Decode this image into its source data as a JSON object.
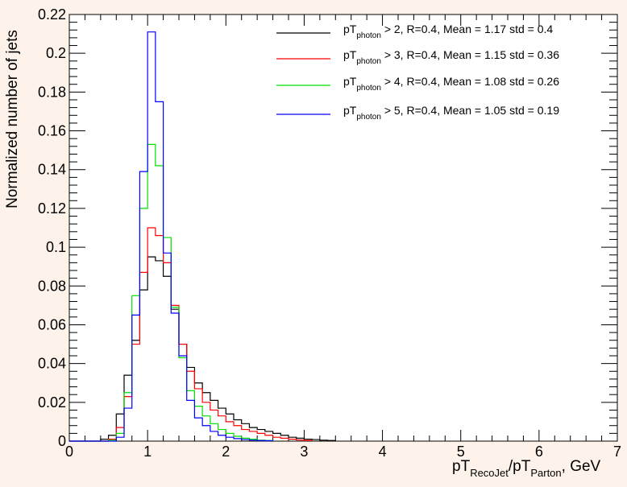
{
  "chart_data": {
    "type": "histogram",
    "xlim": [
      0,
      7
    ],
    "ylim": [
      0,
      0.22
    ],
    "bin_width": 0.1,
    "bin_start": 0.0,
    "x_ticks": [
      "0",
      "1",
      "2",
      "3",
      "4",
      "5",
      "6",
      "7"
    ],
    "y_ticks": [
      "0",
      "0.02",
      "0.04",
      "0.06",
      "0.08",
      "0.1",
      "0.12",
      "0.14",
      "0.16",
      "0.18",
      "0.2",
      "0.22"
    ],
    "ylabel": "Normalized number of jets",
    "xlabel": {
      "parts": [
        "pT",
        "RecoJet",
        "/pT",
        "Parton",
        ", GeV"
      ]
    },
    "grid": false,
    "legend_position": "top-right",
    "series": [
      {
        "color": "#000000",
        "label": {
          "main": "pT",
          "sub": "photon",
          "rest": " > 2, R=0.4, Mean = 1.17 std = 0.4"
        },
        "values": [
          0,
          0,
          0,
          0,
          0.001,
          0.003,
          0.014,
          0.034,
          0.052,
          0.078,
          0.095,
          0.093,
          0.085,
          0.068,
          0.05,
          0.038,
          0.03,
          0.025,
          0.021,
          0.017,
          0.014,
          0.011,
          0.009,
          0.007,
          0.006,
          0.005,
          0.004,
          0.003,
          0.002,
          0.0015,
          0.001,
          0.0008,
          0.0005,
          0.0003
        ]
      },
      {
        "color": "#ff0000",
        "label": {
          "main": "pT",
          "sub": "photon",
          "rest": " > 3, R=0.4, Mean = 1.15 std = 0.36"
        },
        "values": [
          0,
          0,
          0,
          0,
          0,
          0.001,
          0.007,
          0.023,
          0.05,
          0.087,
          0.11,
          0.106,
          0.092,
          0.07,
          0.05,
          0.036,
          0.027,
          0.02,
          0.016,
          0.013,
          0.01,
          0.008,
          0.006,
          0.005,
          0.004,
          0.003,
          0.002,
          0.0015,
          0.001,
          0.0006,
          0.0003
        ]
      },
      {
        "color": "#00dd00",
        "label": {
          "main": "pT",
          "sub": "photon",
          "rest": " > 4, R=0.4, Mean = 1.08 std = 0.26"
        },
        "values": [
          0,
          0,
          0,
          0,
          0,
          0.0005,
          0.004,
          0.025,
          0.075,
          0.12,
          0.153,
          0.142,
          0.105,
          0.069,
          0.043,
          0.026,
          0.018,
          0.013,
          0.009,
          0.006,
          0.004,
          0.0025,
          0.0015,
          0.001,
          0.0005,
          0.0003
        ]
      },
      {
        "color": "#0000ff",
        "label": {
          "main": "pT",
          "sub": "photon",
          "rest": " > 5, R=0.4, Mean = 1.05 std = 0.19"
        },
        "values": [
          0,
          0,
          0,
          0,
          0,
          0,
          0.002,
          0.017,
          0.065,
          0.139,
          0.211,
          0.175,
          0.097,
          0.066,
          0.044,
          0.021,
          0.012,
          0.008,
          0.005,
          0.003,
          0.002,
          0.0013,
          0.0008,
          0.0005,
          0.0003,
          0.0002
        ]
      }
    ]
  }
}
